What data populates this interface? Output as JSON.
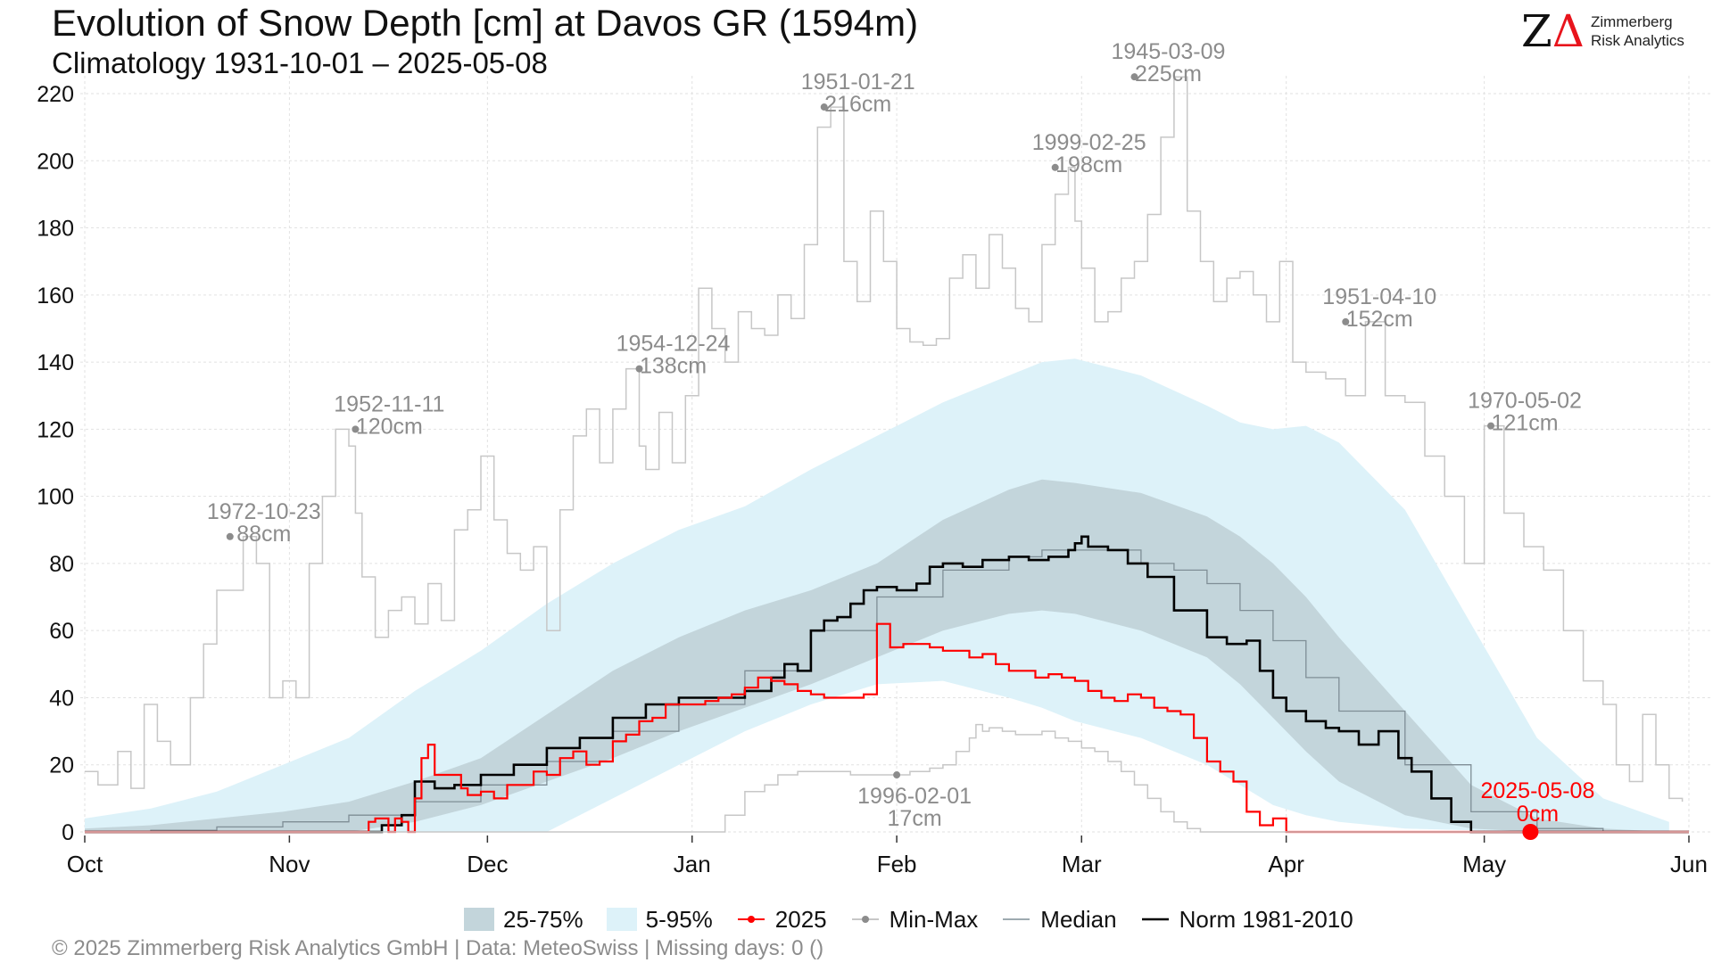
{
  "title": "Evolution of Snow Depth [cm] at Davos  GR (1594m)",
  "subtitle": "Climatology 1931-10-01 – 2025-05-08",
  "logo": {
    "mark": "Z",
    "delta": "Δ",
    "line1": "Zimmerberg",
    "line2": "Risk Analytics"
  },
  "footer": "©  2025 Zimmerberg Risk Analytics GmbH | Data: MeteoSwiss | Missing days: 0 ()",
  "legend": [
    {
      "key": "q25_75",
      "label": "25-75%"
    },
    {
      "key": "q05_95",
      "label": "5-95%"
    },
    {
      "key": "y2025",
      "label": "2025"
    },
    {
      "key": "minmax",
      "label": "Min-Max"
    },
    {
      "key": "median",
      "label": "Median"
    },
    {
      "key": "norm",
      "label": "Norm 1981-2010"
    }
  ],
  "colors": {
    "q25_75": "#c3d5db",
    "q05_95": "#ddf2f9",
    "y2025": "#ff0000",
    "minmax": "#c7c7c7",
    "median": "#7f8e96",
    "norm": "#000000",
    "grid": "#e2e2e2",
    "annotation": "#8c8c8c"
  },
  "chart_data": {
    "type": "line",
    "x_unit": "day of season (0 = Oct 1)",
    "xlim": [
      0,
      243
    ],
    "ylim": [
      0,
      225
    ],
    "grid": true,
    "legend_position": "bottom",
    "x_ticks": [
      {
        "day": 0,
        "label": "Oct"
      },
      {
        "day": 31,
        "label": "Nov"
      },
      {
        "day": 61,
        "label": "Dec"
      },
      {
        "day": 92,
        "label": "Jan"
      },
      {
        "day": 123,
        "label": "Feb"
      },
      {
        "day": 151,
        "label": "Mar"
      },
      {
        "day": 182,
        "label": "Apr"
      },
      {
        "day": 212,
        "label": "May"
      },
      {
        "day": 243,
        "label": "Jun"
      }
    ],
    "y_ticks": [
      0,
      20,
      40,
      60,
      80,
      100,
      120,
      140,
      160,
      180,
      200,
      220
    ],
    "series": [
      {
        "name": "5-95%",
        "type": "band",
        "x": [
          0,
          10,
          20,
          30,
          40,
          50,
          60,
          70,
          80,
          90,
          100,
          110,
          120,
          130,
          140,
          145,
          150,
          160,
          170,
          175,
          180,
          185,
          190,
          200,
          210,
          220,
          230,
          240
        ],
        "lower": [
          0,
          0,
          0,
          0,
          0,
          0,
          0,
          0,
          10,
          20,
          30,
          38,
          44,
          45,
          40,
          37,
          33,
          28,
          20,
          14,
          8,
          5,
          3,
          1,
          0.5,
          0,
          0,
          0
        ],
        "upper": [
          4,
          7,
          12,
          20,
          28,
          42,
          54,
          68,
          80,
          90,
          97,
          108,
          118,
          128,
          136,
          140,
          141,
          136,
          127,
          122,
          120,
          121,
          116,
          96,
          62,
          28,
          10,
          3
        ]
      },
      {
        "name": "25-75%",
        "type": "band",
        "x": [
          0,
          10,
          20,
          30,
          40,
          50,
          60,
          70,
          80,
          90,
          100,
          110,
          120,
          130,
          140,
          145,
          150,
          160,
          170,
          175,
          180,
          185,
          190,
          200,
          210,
          220,
          230,
          240
        ],
        "lower": [
          0,
          0,
          0,
          0,
          0,
          3,
          8,
          15,
          22,
          30,
          37,
          44,
          52,
          60,
          65,
          66,
          65,
          60,
          52,
          44,
          34,
          24,
          15,
          5,
          1,
          0,
          0,
          0
        ],
        "upper": [
          1,
          2,
          4,
          6,
          9,
          15,
          22,
          35,
          48,
          58,
          66,
          72,
          80,
          93,
          102,
          105,
          104,
          101,
          94,
          88,
          80,
          70,
          58,
          36,
          14,
          4,
          1,
          0
        ]
      },
      {
        "name": "Median",
        "type": "line",
        "x": [
          0,
          10,
          20,
          30,
          40,
          50,
          60,
          70,
          80,
          90,
          100,
          110,
          120,
          130,
          140,
          145,
          150,
          160,
          165,
          170,
          175,
          180,
          185,
          190,
          200,
          210,
          220,
          230,
          240
        ],
        "y": [
          0,
          0.5,
          1.5,
          3,
          5,
          9,
          14,
          21,
          30,
          38,
          48,
          60,
          70,
          78,
          82,
          84,
          84,
          80,
          78,
          74,
          66,
          57,
          46,
          36,
          20,
          6,
          1,
          0,
          0
        ]
      },
      {
        "name": "Norm 1981-2010",
        "type": "line",
        "x": [
          0,
          40,
          45,
          48,
          50,
          53,
          56,
          60,
          65,
          70,
          75,
          80,
          85,
          90,
          95,
          100,
          104,
          106,
          108,
          110,
          112,
          114,
          116,
          118,
          120,
          123,
          126,
          128,
          130,
          133,
          136,
          140,
          143,
          146,
          149,
          150,
          151,
          152,
          155,
          158,
          161,
          165,
          170,
          173,
          176,
          178,
          180,
          182,
          185,
          188,
          190,
          193,
          196,
          199,
          201,
          204,
          207,
          210,
          243
        ],
        "y": [
          0,
          0,
          2,
          5,
          15,
          13,
          14,
          17,
          20,
          25,
          28,
          34,
          38,
          40,
          40,
          42,
          46,
          50,
          48,
          60,
          63,
          64,
          68,
          72,
          73,
          72,
          74,
          79,
          80,
          79,
          81,
          82,
          81,
          82,
          84,
          86,
          88,
          85,
          84,
          80,
          76,
          66,
          58,
          56,
          57,
          48,
          40,
          36,
          33,
          31,
          30,
          26,
          30,
          22,
          18,
          10,
          3,
          0,
          0
        ]
      },
      {
        "name": "2025",
        "type": "line",
        "x": [
          0,
          41,
          43,
          44,
          46,
          47,
          48,
          49,
          50,
          51,
          52,
          53,
          55,
          57,
          58,
          60,
          62,
          64,
          66,
          68,
          70,
          72,
          74,
          76,
          78,
          80,
          82,
          84,
          86,
          88,
          90,
          92,
          94,
          96,
          98,
          100,
          102,
          104,
          106,
          108,
          110,
          112,
          114,
          116,
          118,
          120,
          122,
          124,
          126,
          128,
          130,
          132,
          134,
          136,
          138,
          140,
          142,
          144,
          146,
          148,
          150,
          152,
          154,
          156,
          158,
          160,
          162,
          164,
          166,
          168,
          170,
          172,
          174,
          176,
          178,
          180,
          182,
          184,
          243
        ],
        "y": [
          0,
          0,
          3,
          4,
          0,
          4,
          3,
          0,
          10,
          22,
          26,
          17,
          17,
          13,
          11,
          12,
          10,
          14,
          14,
          18,
          17,
          22,
          24,
          20,
          21,
          27,
          29,
          33,
          34,
          38,
          38,
          38,
          39,
          40,
          41,
          43,
          46,
          45,
          44,
          42,
          41,
          40,
          40,
          40,
          41,
          62,
          55,
          56,
          56,
          55,
          54,
          54,
          52,
          53,
          50,
          48,
          48,
          46,
          47,
          46,
          45,
          42,
          40,
          39,
          41,
          40,
          37,
          36,
          35,
          28,
          21,
          18,
          15,
          6,
          2,
          4,
          0,
          0,
          0
        ]
      },
      {
        "name": "Min-Max",
        "type": "line",
        "role": "max",
        "x": [
          0,
          2,
          5,
          7,
          9,
          11,
          13,
          16,
          18,
          20,
          24,
          26,
          28,
          30,
          32,
          34,
          36,
          38,
          40,
          41,
          42,
          44,
          46,
          48,
          50,
          52,
          54,
          56,
          58,
          60,
          62,
          64,
          66,
          68,
          70,
          72,
          74,
          76,
          78,
          80,
          82,
          84,
          85,
          87,
          89,
          91,
          93,
          95,
          97,
          99,
          101,
          103,
          105,
          107,
          109,
          111,
          113,
          115,
          117,
          119,
          121,
          123,
          125,
          127,
          129,
          131,
          133,
          135,
          137,
          139,
          141,
          143,
          145,
          147,
          149,
          150,
          151,
          153,
          155,
          157,
          159,
          161,
          163,
          165,
          167,
          169,
          171,
          173,
          175,
          177,
          179,
          181,
          183,
          185,
          188,
          191,
          194,
          197,
          200,
          203,
          206,
          209,
          212,
          215,
          218,
          221,
          224,
          227,
          230,
          232,
          234,
          236,
          238,
          240,
          242
        ],
        "y": [
          18,
          14,
          24,
          13,
          38,
          27,
          20,
          40,
          56,
          72,
          88,
          80,
          40,
          45,
          40,
          80,
          100,
          120,
          115,
          95,
          76,
          58,
          66,
          70,
          62,
          74,
          63,
          90,
          96,
          112,
          93,
          83,
          78,
          85,
          60,
          96,
          118,
          126,
          110,
          126,
          138,
          115,
          108,
          125,
          110,
          130,
          162,
          150,
          140,
          155,
          150,
          148,
          160,
          153,
          175,
          210,
          216,
          170,
          158,
          185,
          170,
          150,
          146,
          145,
          147,
          165,
          172,
          162,
          178,
          168,
          156,
          152,
          175,
          190,
          198,
          182,
          168,
          152,
          155,
          165,
          170,
          184,
          207,
          225,
          185,
          170,
          158,
          165,
          167,
          160,
          152,
          170,
          140,
          137,
          135,
          130,
          152,
          130,
          128,
          112,
          100,
          80,
          121,
          95,
          85,
          78,
          60,
          45,
          38,
          20,
          15,
          35,
          20,
          10,
          9
        ]
      },
      {
        "name": "Min-Max",
        "type": "line",
        "role": "min",
        "x": [
          0,
          95,
          97,
          100,
          103,
          105,
          108,
          110,
          113,
          116,
          118,
          120,
          122,
          125,
          128,
          130,
          132,
          134,
          135,
          136,
          137,
          139,
          141,
          143,
          145,
          147,
          149,
          151,
          153,
          155,
          157,
          159,
          161,
          163,
          165,
          167,
          169,
          171,
          173,
          175,
          177,
          179,
          181,
          243
        ],
        "y": [
          0,
          0,
          5,
          12,
          14,
          17,
          18,
          18,
          18,
          17,
          17,
          17,
          17,
          18,
          19,
          20,
          24,
          28,
          32,
          30,
          31,
          30,
          29,
          29,
          30,
          28,
          27,
          25,
          24,
          21,
          18,
          14,
          10,
          6,
          3,
          1,
          0,
          0,
          0,
          0,
          0,
          0,
          0,
          0
        ]
      }
    ],
    "annotations": [
      {
        "kind": "max",
        "date": "1972-10-23",
        "value": "88cm",
        "x": 22,
        "y": 88
      },
      {
        "kind": "max",
        "date": "1952-11-11",
        "value": "120cm",
        "x": 41,
        "y": 120
      },
      {
        "kind": "max",
        "date": "1954-12-24",
        "value": "138cm",
        "x": 84,
        "y": 138
      },
      {
        "kind": "max",
        "date": "1951-01-21",
        "value": "216cm",
        "x": 112,
        "y": 216
      },
      {
        "kind": "max",
        "date": "1999-02-25",
        "value": "198cm",
        "x": 147,
        "y": 198
      },
      {
        "kind": "max",
        "date": "1945-03-09",
        "value": "225cm",
        "x": 159,
        "y": 225
      },
      {
        "kind": "max",
        "date": "1951-04-10",
        "value": "152cm",
        "x": 191,
        "y": 152
      },
      {
        "kind": "max",
        "date": "1970-05-02",
        "value": "121cm",
        "x": 213,
        "y": 121
      },
      {
        "kind": "min",
        "date": "1996-02-01",
        "value": "17cm",
        "x": 123,
        "y": 17
      },
      {
        "kind": "current",
        "date": "2025-05-08",
        "value": "0cm",
        "x": 219,
        "y": 0
      }
    ]
  }
}
